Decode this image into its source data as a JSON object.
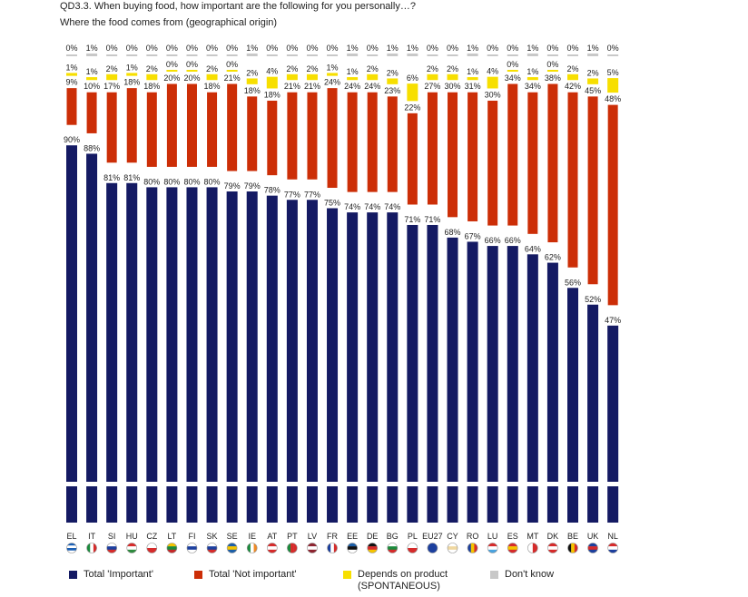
{
  "question": {
    "title": "QD3.3. When buying food, how important are the following for you personally…?",
    "subtitle": "Where the food comes from (geographical origin)"
  },
  "legend": {
    "important": "Total 'Important'",
    "not_important": "Total 'Not important'",
    "depends_line1": "Depends on product",
    "depends_line2": "(SPONTANEOUS)",
    "dont_know": "Don't know"
  },
  "colors": {
    "important": "#141a63",
    "not_important": "#cc2e07",
    "depends": "#f7df00",
    "dont_know": "#c8c8c8"
  },
  "chart_data": {
    "type": "bar",
    "stacked": true,
    "title": "QD3.3. When buying food, how important are the following for you personally…?",
    "subtitle": "Where the food comes from (geographical origin)",
    "categories": [
      "EL",
      "IT",
      "SI",
      "HU",
      "CZ",
      "LT",
      "FI",
      "SK",
      "SE",
      "IE",
      "AT",
      "PT",
      "LV",
      "FR",
      "EE",
      "DE",
      "BG",
      "PL",
      "EU27",
      "CY",
      "RO",
      "LU",
      "ES",
      "MT",
      "DK",
      "BE",
      "UK",
      "NL"
    ],
    "series": [
      {
        "name": "Total 'Important'",
        "values": [
          90,
          88,
          81,
          81,
          80,
          80,
          80,
          80,
          79,
          79,
          78,
          77,
          77,
          75,
          74,
          74,
          74,
          71,
          71,
          68,
          67,
          66,
          66,
          64,
          62,
          56,
          52,
          47
        ]
      },
      {
        "name": "Total 'Not important'",
        "values": [
          9,
          10,
          17,
          18,
          18,
          20,
          20,
          18,
          21,
          18,
          18,
          21,
          21,
          24,
          24,
          24,
          23,
          22,
          27,
          30,
          31,
          30,
          34,
          34,
          38,
          42,
          45,
          48
        ]
      },
      {
        "name": "Depends on product (SPONTANEOUS)",
        "values": [
          1,
          1,
          2,
          1,
          2,
          0,
          0,
          2,
          0,
          2,
          4,
          2,
          2,
          1,
          1,
          2,
          2,
          6,
          2,
          2,
          1,
          4,
          0,
          1,
          0,
          2,
          2,
          5
        ]
      },
      {
        "name": "Don't know",
        "values": [
          0,
          1,
          0,
          0,
          0,
          0,
          0,
          0,
          0,
          1,
          0,
          0,
          0,
          0,
          1,
          0,
          1,
          1,
          0,
          0,
          1,
          0,
          0,
          1,
          0,
          0,
          1,
          0
        ]
      }
    ],
    "legend_position": "bottom",
    "value_labels": "percent"
  }
}
